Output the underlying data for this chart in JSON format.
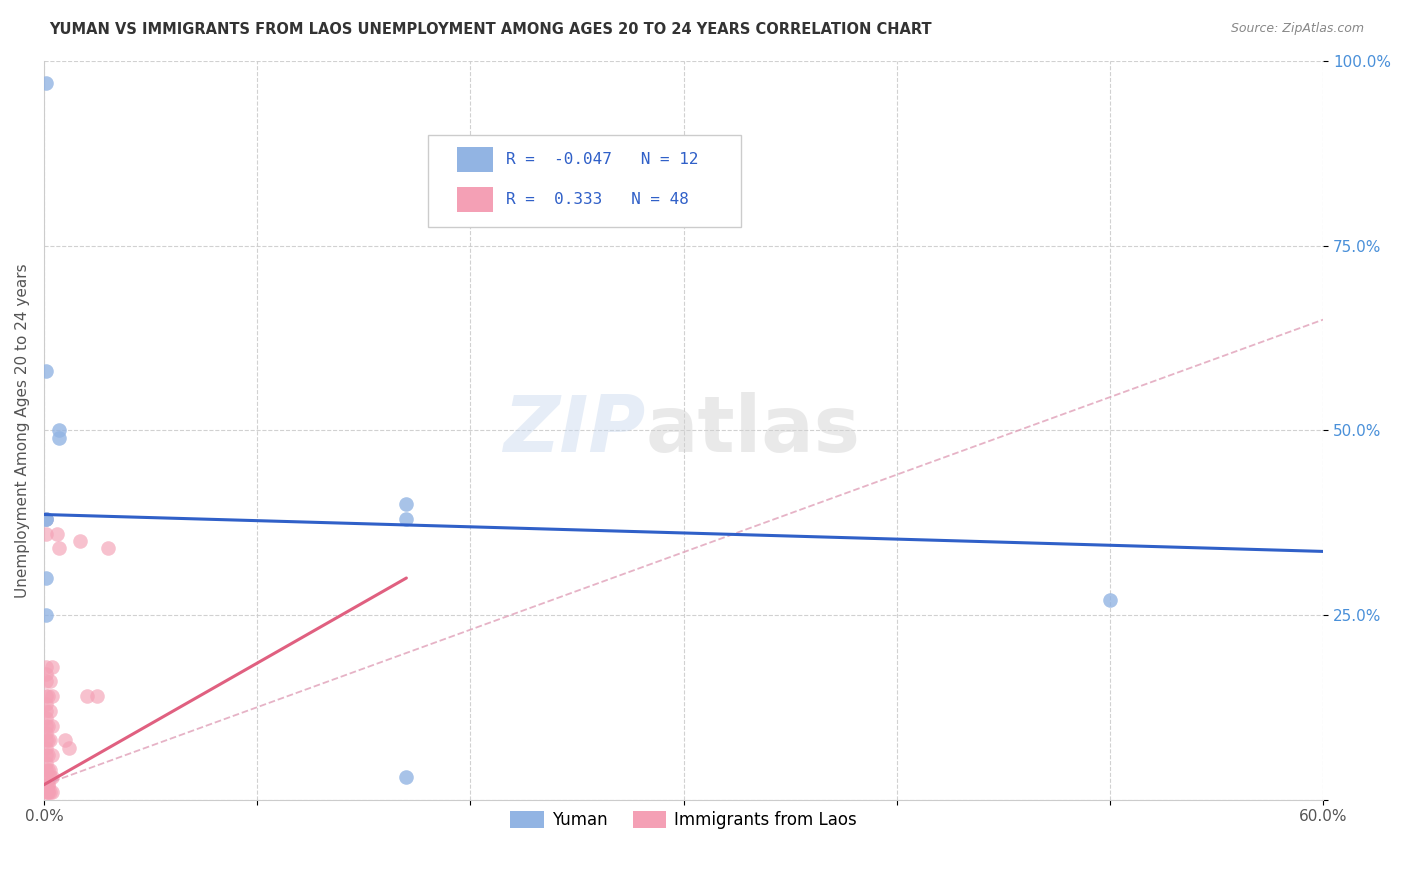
{
  "title": "YUMAN VS IMMIGRANTS FROM LAOS UNEMPLOYMENT AMONG AGES 20 TO 24 YEARS CORRELATION CHART",
  "source": "Source: ZipAtlas.com",
  "ylabel": "Unemployment Among Ages 20 to 24 years",
  "xlim": [
    0.0,
    0.6
  ],
  "ylim": [
    0.0,
    1.0
  ],
  "yticks": [
    0.0,
    0.25,
    0.5,
    0.75,
    1.0
  ],
  "yticklabels": [
    "",
    "25.0%",
    "50.0%",
    "75.0%",
    "100.0%"
  ],
  "xtick_positions": [
    0.0,
    0.1,
    0.2,
    0.3,
    0.4,
    0.5,
    0.6
  ],
  "xticklabels": [
    "0.0%",
    "",
    "",
    "",
    "",
    "",
    "60.0%"
  ],
  "yuman_color": "#92b4e3",
  "laos_color": "#f4a0b5",
  "line_blue": "#3060c8",
  "line_pink": "#e06080",
  "line_dash": "#e0a0b8",
  "yuman_R": -0.047,
  "yuman_N": 12,
  "laos_R": 0.333,
  "laos_N": 48,
  "yuman_points": [
    [
      0.001,
      0.97
    ],
    [
      0.001,
      0.58
    ],
    [
      0.007,
      0.5
    ],
    [
      0.007,
      0.49
    ],
    [
      0.001,
      0.38
    ],
    [
      0.001,
      0.38
    ],
    [
      0.001,
      0.3
    ],
    [
      0.17,
      0.4
    ],
    [
      0.17,
      0.38
    ],
    [
      0.001,
      0.25
    ],
    [
      0.5,
      0.27
    ],
    [
      0.17,
      0.03
    ]
  ],
  "laos_points": [
    [
      0.001,
      0.38
    ],
    [
      0.001,
      0.36
    ],
    [
      0.001,
      0.18
    ],
    [
      0.001,
      0.17
    ],
    [
      0.001,
      0.16
    ],
    [
      0.001,
      0.14
    ],
    [
      0.001,
      0.13
    ],
    [
      0.001,
      0.12
    ],
    [
      0.001,
      0.11
    ],
    [
      0.001,
      0.1
    ],
    [
      0.001,
      0.09
    ],
    [
      0.001,
      0.08
    ],
    [
      0.001,
      0.07
    ],
    [
      0.001,
      0.06
    ],
    [
      0.001,
      0.05
    ],
    [
      0.001,
      0.04
    ],
    [
      0.001,
      0.03
    ],
    [
      0.001,
      0.02
    ],
    [
      0.001,
      0.01
    ],
    [
      0.002,
      0.14
    ],
    [
      0.002,
      0.1
    ],
    [
      0.002,
      0.08
    ],
    [
      0.002,
      0.06
    ],
    [
      0.002,
      0.04
    ],
    [
      0.002,
      0.02
    ],
    [
      0.002,
      0.01
    ],
    [
      0.003,
      0.16
    ],
    [
      0.003,
      0.12
    ],
    [
      0.003,
      0.08
    ],
    [
      0.003,
      0.04
    ],
    [
      0.003,
      0.01
    ],
    [
      0.004,
      0.18
    ],
    [
      0.004,
      0.14
    ],
    [
      0.004,
      0.1
    ],
    [
      0.004,
      0.06
    ],
    [
      0.004,
      0.03
    ],
    [
      0.004,
      0.01
    ],
    [
      0.006,
      0.36
    ],
    [
      0.007,
      0.34
    ],
    [
      0.01,
      0.08
    ],
    [
      0.012,
      0.07
    ],
    [
      0.017,
      0.35
    ],
    [
      0.02,
      0.14
    ],
    [
      0.025,
      0.14
    ],
    [
      0.03,
      0.34
    ],
    [
      0.002,
      0.01
    ],
    [
      0.002,
      0.02
    ],
    [
      0.003,
      0.03
    ]
  ],
  "yuman_line": [
    [
      0.0,
      0.386
    ],
    [
      0.6,
      0.336
    ]
  ],
  "laos_line_solid": [
    [
      0.0,
      0.02
    ],
    [
      0.17,
      0.3
    ]
  ],
  "laos_line_dash": [
    [
      0.0,
      0.02
    ],
    [
      0.6,
      0.65
    ]
  ]
}
